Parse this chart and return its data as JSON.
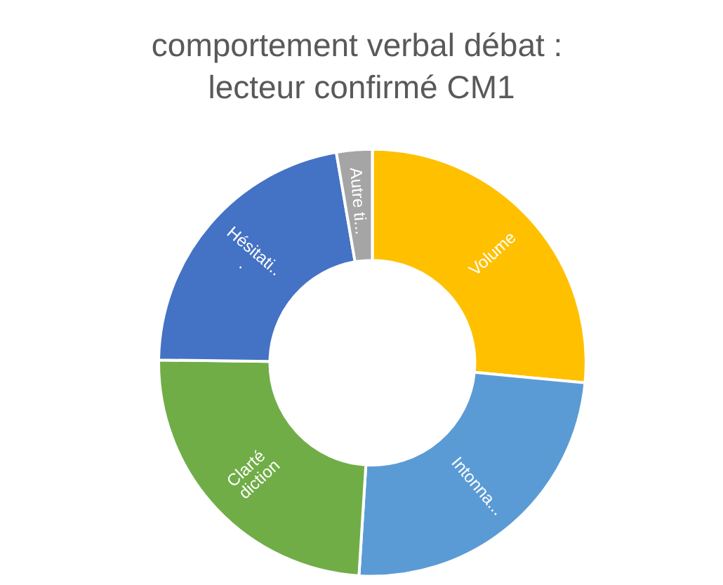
{
  "chart_data": {
    "type": "donut",
    "title": "comportement verbal débat : lecteur confirmé CM1",
    "categories": [
      "Volume",
      "Intonna...",
      "Clarté diction",
      "Hésitati...",
      "Autre ti..."
    ],
    "values": [
      26.5,
      24.5,
      24.2,
      22.1,
      2.7
    ],
    "colors": [
      "#ffc000",
      "#5b9bd5",
      "#70ad47",
      "#4472c4",
      "#a5a5a5"
    ],
    "legend": false
  }
}
